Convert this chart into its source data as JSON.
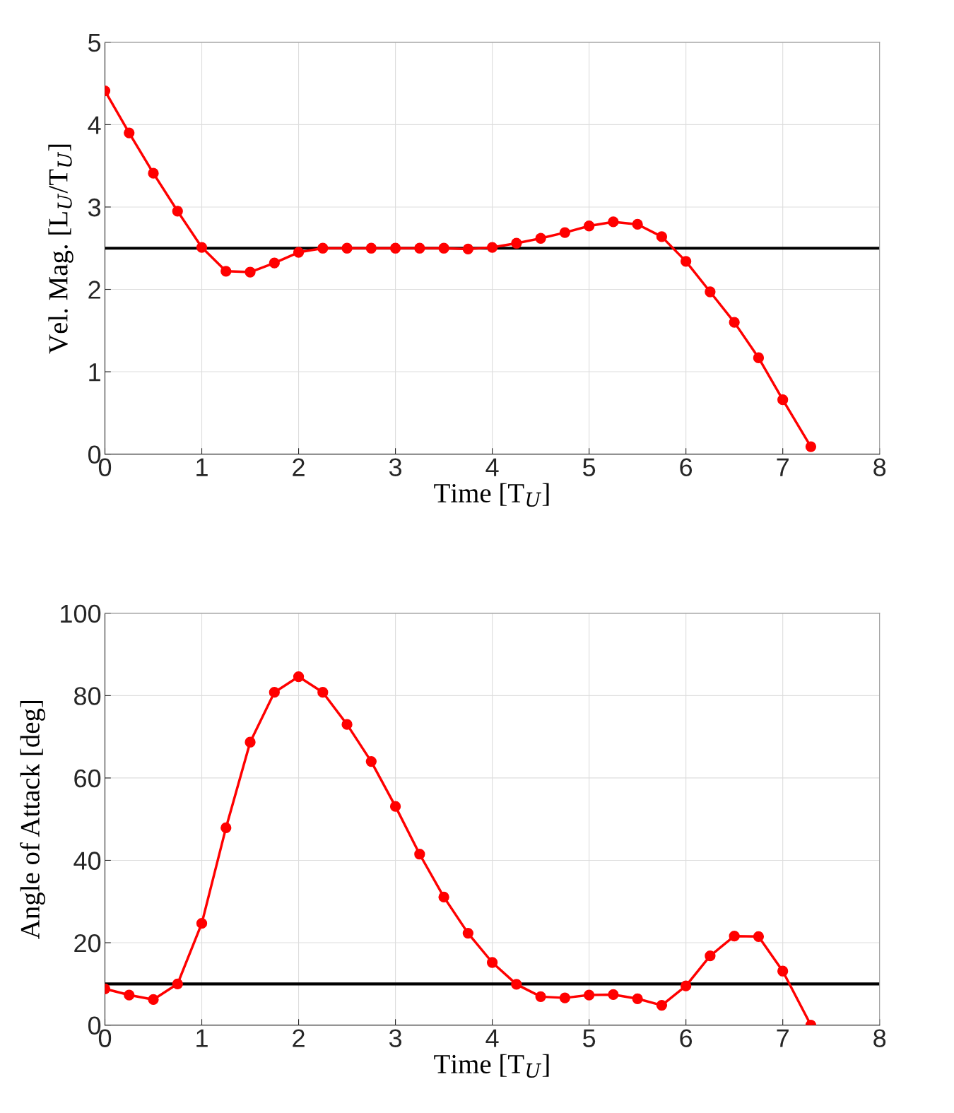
{
  "chart_data": [
    {
      "type": "line",
      "xlabel": "Time [T$_{U}$]",
      "ylabel": "Vel. Mag. [L$_{U}$/T$_{U}$]",
      "x": [
        0,
        0.25,
        0.5,
        0.75,
        1,
        1.25,
        1.5,
        1.75,
        2,
        2.25,
        2.5,
        2.75,
        3,
        3.25,
        3.5,
        3.75,
        4,
        4.25,
        4.5,
        4.75,
        5,
        5.25,
        5.5,
        5.75,
        6,
        6.25,
        6.5,
        6.75,
        7,
        7.29
      ],
      "series": [
        {
          "color": "#ff0000",
          "values": [
            4.41,
            3.9,
            3.41,
            2.95,
            2.51,
            2.22,
            2.21,
            2.32,
            2.45,
            2.5,
            2.5,
            2.5,
            2.5,
            2.5,
            2.5,
            2.49,
            2.51,
            2.56,
            2.62,
            2.69,
            2.77,
            2.82,
            2.79,
            2.64,
            2.34,
            1.97,
            1.6,
            1.17,
            0.66,
            0.09
          ]
        }
      ],
      "ref_lines": [
        {
          "axis": "y",
          "value": 2.5,
          "color": "#000000"
        }
      ],
      "xlim": [
        0,
        8
      ],
      "xticks": [
        0,
        1,
        2,
        3,
        4,
        5,
        6,
        7,
        8
      ],
      "ylim": [
        0,
        5
      ],
      "yticks": [
        0,
        1,
        2,
        3,
        4,
        5
      ],
      "grid": true,
      "marker": "circle",
      "line_style": "solid"
    },
    {
      "type": "line",
      "xlabel": "Time [T$_{U}$]",
      "ylabel": "Angle of Attack [deg]",
      "x": [
        0,
        0.25,
        0.5,
        0.75,
        1,
        1.25,
        1.5,
        1.75,
        2,
        2.25,
        2.5,
        2.75,
        3,
        3.25,
        3.5,
        3.75,
        4,
        4.25,
        4.5,
        4.75,
        5,
        5.25,
        5.5,
        5.75,
        6,
        6.25,
        6.5,
        6.75,
        7,
        7.29
      ],
      "series": [
        {
          "color": "#ff0000",
          "values": [
            8.8,
            7.3,
            6.2,
            10.0,
            24.7,
            47.9,
            68.7,
            80.8,
            84.6,
            80.8,
            73.0,
            64.0,
            53.1,
            41.5,
            31.1,
            22.3,
            15.2,
            9.9,
            6.9,
            6.6,
            7.3,
            7.4,
            6.4,
            4.8,
            9.5,
            16.8,
            21.6,
            21.5,
            13.1,
            0
          ]
        }
      ],
      "ref_lines": [
        {
          "axis": "y",
          "value": 10,
          "color": "#000000"
        }
      ],
      "xlim": [
        0,
        8
      ],
      "xticks": [
        0,
        1,
        2,
        3,
        4,
        5,
        6,
        7,
        8
      ],
      "ylim": [
        0,
        100
      ],
      "yticks": [
        0,
        20,
        40,
        60,
        80,
        100
      ],
      "grid": true,
      "marker": "circle",
      "line_style": "solid"
    }
  ]
}
